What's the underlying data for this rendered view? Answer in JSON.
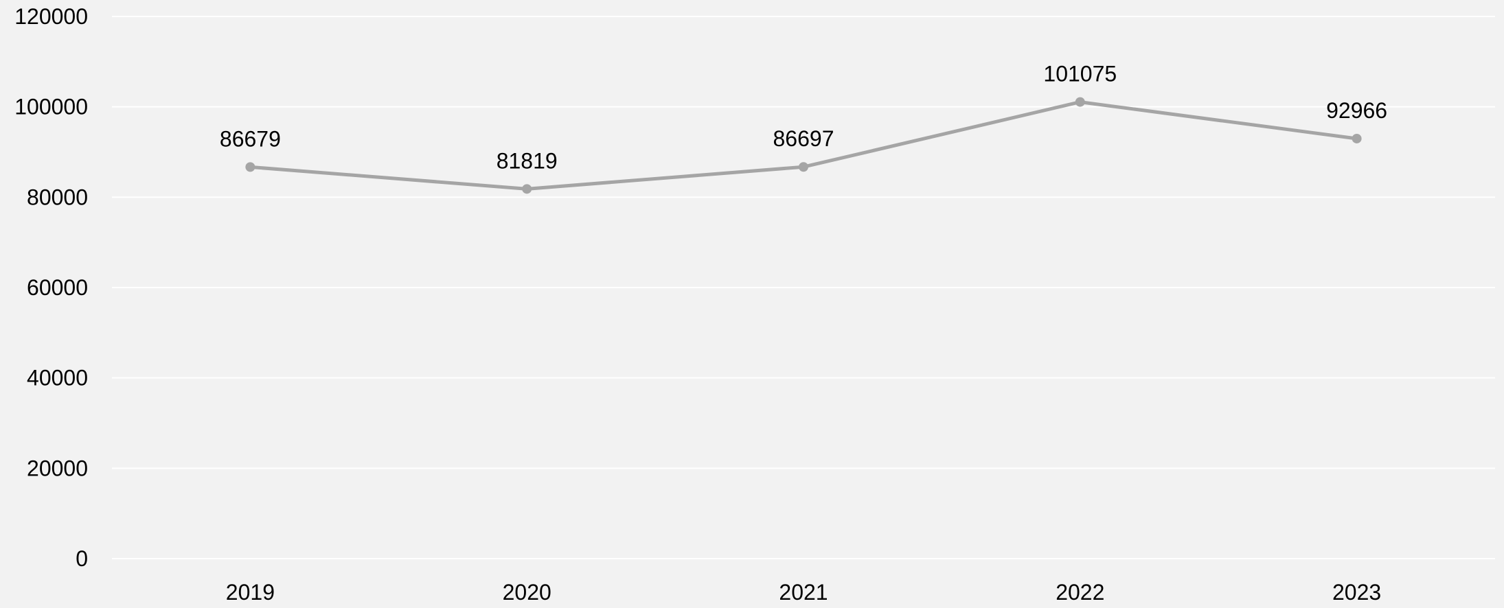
{
  "chart_data": {
    "type": "line",
    "title": "",
    "xlabel": "",
    "ylabel": "",
    "categories": [
      "2019",
      "2020",
      "2021",
      "2022",
      "2023"
    ],
    "series": [
      {
        "values": [
          86679,
          81819,
          86697,
          101075,
          92966
        ],
        "data_labels": [
          "86679",
          "81819",
          "86697",
          "101075",
          "92966"
        ]
      }
    ],
    "ylim": [
      0,
      120000
    ],
    "yticks": [
      "0",
      "20000",
      "40000",
      "60000",
      "80000",
      "100000",
      "120000"
    ],
    "grid": true,
    "legend": "none"
  },
  "colors": {
    "background": "#f2f2f2",
    "gridline": "#ffffff",
    "series_line": "#a5a5a5",
    "text": "#000000"
  }
}
